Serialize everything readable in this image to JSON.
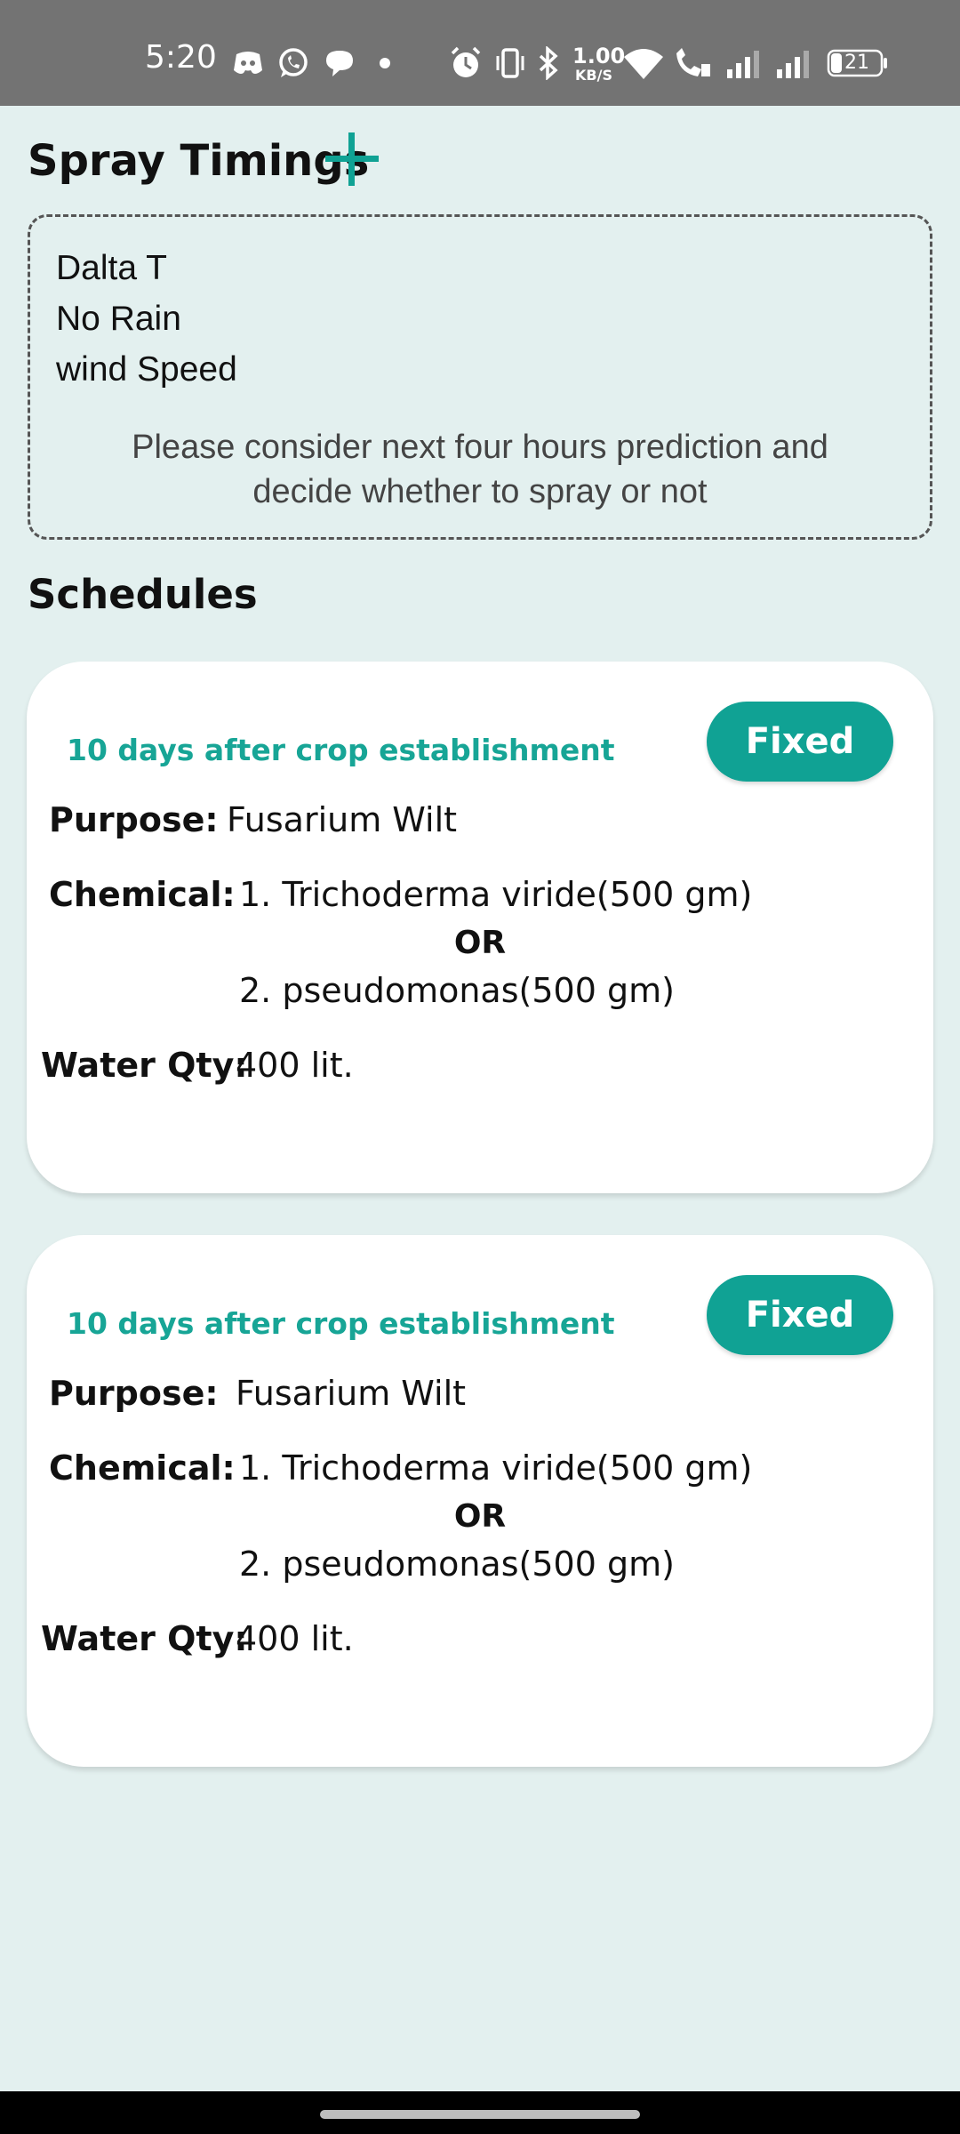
{
  "status_bar": {
    "time": "5:20",
    "net_speed_value": "1.00",
    "net_speed_unit": "KB/S",
    "battery": "21",
    "icons": [
      "discord-icon",
      "whatsapp-icon",
      "chat-bubble-icon",
      "dot-icon",
      "alarm-icon",
      "vibrate-icon",
      "bluetooth-icon",
      "wifi-icon",
      "wifi-call-icon",
      "signal-icon",
      "signal-icon",
      "battery-icon"
    ]
  },
  "header": {
    "title": "Spray Timings",
    "add_icon": "plus-icon"
  },
  "info": {
    "items": [
      "Dalta T",
      "No Rain",
      "wind Speed"
    ],
    "note_line1": "Please consider next four hours prediction and",
    "note_line2": "decide whether to spray or not"
  },
  "schedules": {
    "title": "Schedules",
    "labels": {
      "purpose": "Purpose:",
      "chemical": "Chemical:",
      "water": "Water Qty:"
    },
    "cards": [
      {
        "timing": "10 days after crop establishment",
        "badge": "Fixed",
        "purpose": "Fusarium Wilt",
        "chemical1": "1. Trichoderma viride(500 gm)",
        "or": "OR",
        "chemical2": "2. pseudomonas(500 gm)",
        "water": "400 lit."
      },
      {
        "timing": "10 days after crop establishment",
        "badge": "Fixed",
        "purpose": "Fusarium Wilt",
        "chemical1": "1. Trichoderma viride(500 gm)",
        "or": "OR",
        "chemical2": "2. pseudomonas(500 gm)",
        "water": "400 lit."
      }
    ]
  },
  "colors": {
    "accent": "#10a294",
    "background": "#e3f0ef",
    "status_bar": "#737373"
  }
}
